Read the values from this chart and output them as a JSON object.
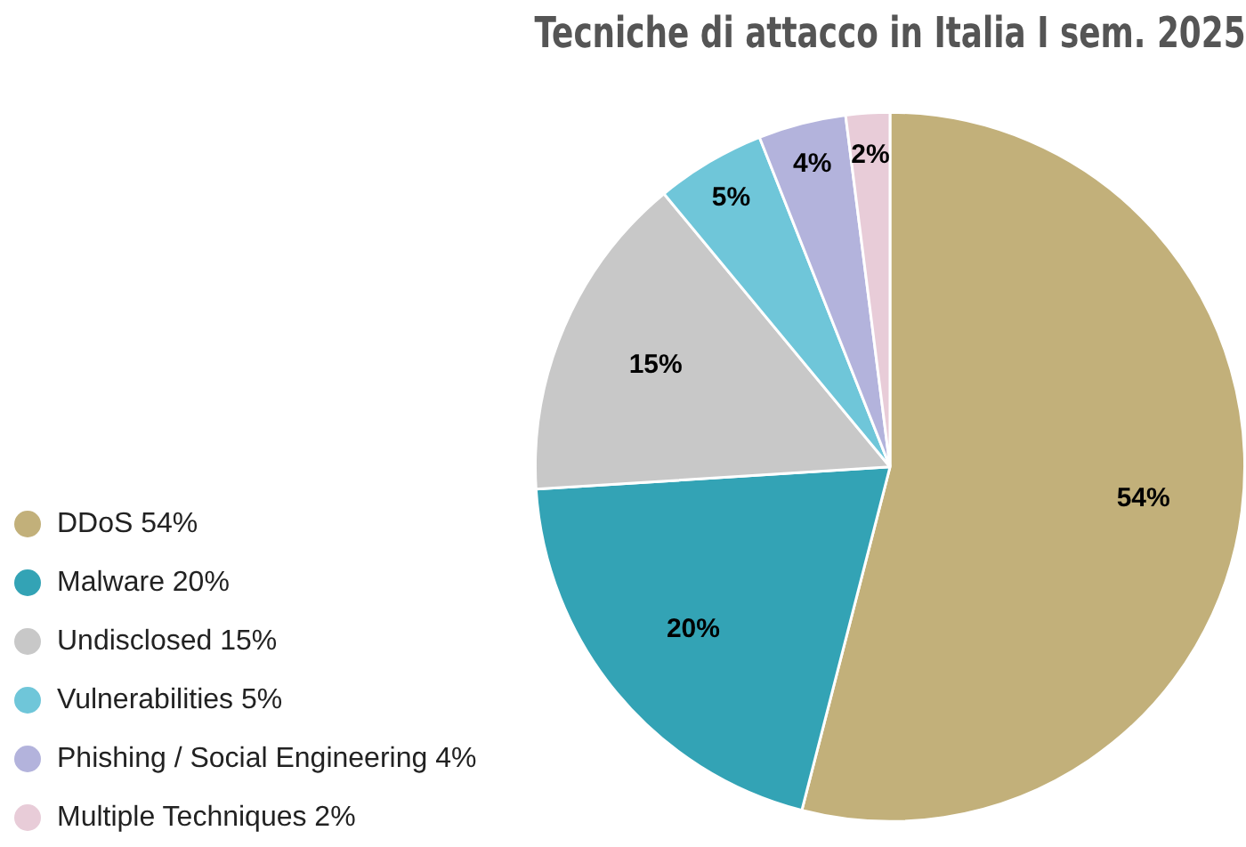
{
  "chart_data": {
    "type": "pie",
    "title": "Tecniche di attacco in Italia I sem. 2025",
    "categories": [
      "DDoS 54%",
      "Malware 20%",
      "Undisclosed 15%",
      "Vulnerabilities 5%",
      "Phishing / Social Engineering 4%",
      "Multiple Techniques 2%"
    ],
    "values": [
      54,
      20,
      15,
      5,
      4,
      2
    ],
    "colors": [
      "#c2b07a",
      "#33a3b5",
      "#c8c8c8",
      "#6fc6d9",
      "#b3b3dc",
      "#e8ccd8"
    ],
    "value_labels": [
      "54%",
      "20%",
      "15%",
      "5%",
      "4%",
      "2%"
    ],
    "legend": "bottom left"
  }
}
